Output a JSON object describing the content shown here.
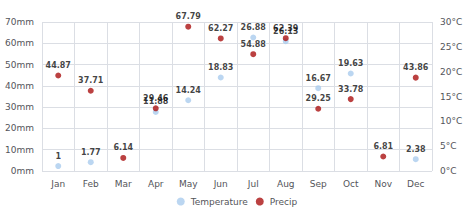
{
  "chart_data": {
    "type": "scatter",
    "categories": [
      "Jan",
      "Feb",
      "Mar",
      "Apr",
      "May",
      "Jun",
      "Jul",
      "Aug",
      "Sep",
      "Oct",
      "Nov",
      "Dec"
    ],
    "series": [
      {
        "name": "Temperature",
        "color": "#aaccee",
        "axis": "y2",
        "values": [
          1.0,
          1.77,
          null,
          11.88,
          14.24,
          18.83,
          26.88,
          26.13,
          16.67,
          19.63,
          null,
          2.38
        ]
      },
      {
        "name": "Precip",
        "color": "#aa1111",
        "values": [
          44.87,
          37.71,
          6.14,
          29.46,
          67.79,
          62.27,
          54.88,
          62.39,
          29.25,
          33.78,
          6.81,
          43.86
        ]
      }
    ],
    "ylim": [
      0,
      70
    ],
    "yticks": [
      {
        "value": 0,
        "label": "0mm"
      },
      {
        "value": 10,
        "label": "10mm"
      },
      {
        "value": 20,
        "label": "20mm"
      },
      {
        "value": 30,
        "label": "30mm"
      },
      {
        "value": 40,
        "label": "40mm"
      },
      {
        "value": 50,
        "label": "50mm"
      },
      {
        "value": 60,
        "label": "60mm"
      },
      {
        "value": 70,
        "label": "70mm"
      }
    ],
    "y2lim": [
      0,
      30
    ],
    "y2ticks": [
      {
        "value": 0,
        "label": "0°C"
      },
      {
        "value": 5,
        "label": "5°C"
      },
      {
        "value": 10,
        "label": "10°C"
      },
      {
        "value": 15,
        "label": "15°C"
      },
      {
        "value": 20,
        "label": "20°C"
      },
      {
        "value": 25,
        "label": "25°C"
      },
      {
        "value": 30,
        "label": "30°C"
      }
    ],
    "grid": true,
    "legend": "bottom",
    "data_labels": true
  }
}
